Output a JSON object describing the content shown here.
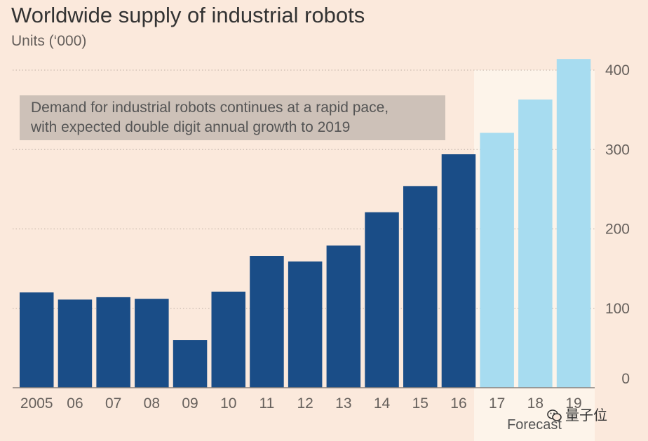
{
  "chart_data": {
    "type": "bar",
    "title": "Worldwide supply of industrial robots",
    "subtitle": "Units (‘000)",
    "categories": [
      "2005",
      "06",
      "07",
      "08",
      "09",
      "10",
      "11",
      "12",
      "13",
      "14",
      "15",
      "16",
      "17",
      "18",
      "19"
    ],
    "values": [
      120,
      111,
      114,
      112,
      60,
      121,
      166,
      159,
      179,
      221,
      254,
      294,
      321,
      363,
      414
    ],
    "forecast": [
      false,
      false,
      false,
      false,
      false,
      false,
      false,
      false,
      false,
      false,
      false,
      false,
      true,
      true,
      true
    ],
    "ylim": [
      0,
      400
    ],
    "yticks": [
      0,
      100,
      200,
      300,
      400
    ],
    "xlabel": "",
    "ylabel": "",
    "grid": true,
    "y_axis_side": "right",
    "forecast_label": "Forecast",
    "annotation": {
      "line1": "Demand for industrial robots continues at a rapid pace,",
      "line2": "with expected double digit annual growth to 2019"
    },
    "colors": {
      "actual": "#1a4d87",
      "forecast": "#a7dcf0",
      "forecast_band": "#fdf4ea",
      "annotation_box": "#cdc1b8",
      "grid": "#c9bbb0",
      "baseline": "#8a817c"
    }
  },
  "watermark": {
    "icon": "wechat-icon",
    "text": "量子位"
  }
}
